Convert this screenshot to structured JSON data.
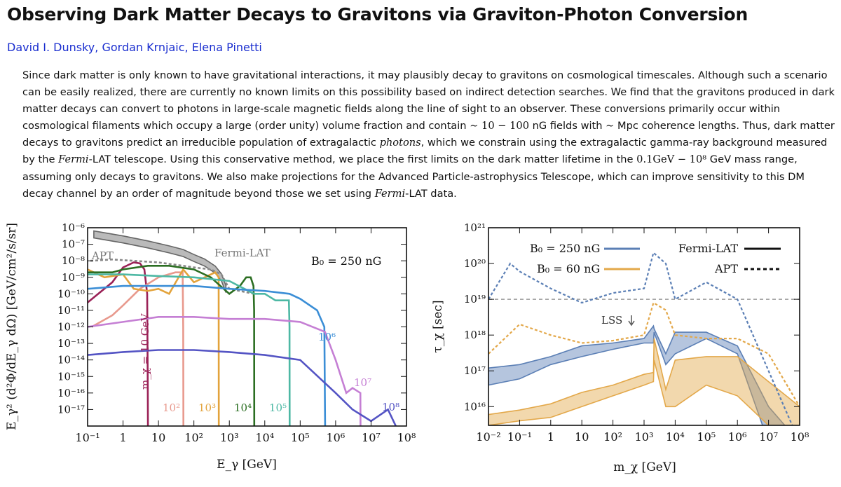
{
  "paper": {
    "title": "Observing Dark Matter Decays to Gravitons via Graviton-Photon Conversion",
    "authors": [
      "David I. Dunsky",
      "Gordan Krnjaic",
      "Elena Pinetti"
    ],
    "abstract": {
      "p1": "Since dark matter is only known to have gravitational interactions, it may plausibly decay to gravitons on cosmological timescales. Although such a scenario can be easily realized, there are currently no known limits on this possibility based on indirect detection searches. We find that the gravitons produced in dark matter decays can convert to photons in large-scale magnetic fields along the line of sight to an observer. These conversions primarily occur within cosmological filaments which occupy a large (order unity) volume fraction and contain ",
      "m1": "∼ 10 − 100",
      "p2": " nG fields with ",
      "m2": "∼",
      "p3": " Mpc coherence lengths. Thus, dark matter decays to gravitons predict an irreducible population of extragalactic ",
      "i1": "photons",
      "p4": ", which we constrain using the extragalactic gamma-ray background measured by the ",
      "i2": "Fermi",
      "p5": "-LAT telescope. Using this conservative method, we place the first limits on the dark matter lifetime in the ",
      "m3": "0.1GeV − 10⁸",
      "p6": " GeV mass range, assuming only decays to gravitons. We also make projections for the Advanced Particle-astrophysics Telescope, which can improve sensitivity to this DM decay channel by an order of magnitude beyond those we set using ",
      "i3": "Fermi",
      "p7": "-LAT data."
    }
  },
  "chart_data": [
    {
      "type": "line",
      "xlabel": "E_γ [GeV]",
      "ylabel": "E_γ² (d²Φ/dE_γ dΩ) [GeV/cm²/s/sr]",
      "xscale": "log",
      "yscale": "log",
      "xlim": [
        0.1,
        100000000
      ],
      "ylim": [
        1e-18,
        1e-06
      ],
      "x_ticks": [
        "10⁻¹",
        "1",
        "10",
        "10²",
        "10³",
        "10⁴",
        "10⁵",
        "10⁶",
        "10⁷",
        "10⁸"
      ],
      "y_ticks": [
        "10⁻⁶",
        "10⁻⁷",
        "10⁻⁸",
        "10⁻⁹",
        "10⁻¹⁰",
        "10⁻¹¹",
        "10⁻¹²",
        "10⁻¹³",
        "10⁻¹⁴",
        "10⁻¹⁵",
        "10⁻¹⁶",
        "10⁻¹⁷"
      ],
      "annotations": {
        "fermi": "Fermi-LAT",
        "apt": "APT",
        "b0": "B₀ = 250 nG"
      },
      "grid": false,
      "series": [
        {
          "name": "Fermi-LAT",
          "color": "#444444",
          "style": "band",
          "x": [
            0.15,
            1,
            5,
            20,
            50,
            100,
            200,
            400,
            600,
            800
          ],
          "y": [
            4e-07,
            2e-07,
            1e-07,
            5e-08,
            3e-08,
            1.5e-08,
            8e-09,
            3e-09,
            1e-09,
            2e-10
          ]
        },
        {
          "name": "APT",
          "color": "#888888",
          "style": "dashed",
          "x": [
            0.12,
            0.5,
            2,
            10,
            50,
            100,
            300,
            600,
            1000,
            5000
          ],
          "y": [
            1e-08,
            1.2e-08,
            1e-08,
            8e-09,
            5e-09,
            4e-09,
            3e-09,
            1.5e-09,
            2e-10,
            1e-10
          ]
        },
        {
          "name": "m_χ = 10 GeV",
          "label": "m_χ = 10 GeV",
          "color": "#9b2257",
          "x": [
            0.1,
            0.5,
            1,
            2,
            3,
            4,
            4.8,
            5,
            5.05
          ],
          "y": [
            3e-11,
            5e-10,
            4e-09,
            8e-09,
            7e-09,
            3e-09,
            1e-10,
            1e-16,
            1e-18
          ]
        },
        {
          "name": "10²",
          "label": "10²",
          "color": "#e8998d",
          "x": [
            0.13,
            0.5,
            1,
            3,
            10,
            30,
            48,
            50,
            50.5
          ],
          "y": [
            1e-12,
            5e-12,
            2e-11,
            2e-10,
            1e-09,
            2e-09,
            2e-09,
            1e-12,
            1e-18
          ]
        },
        {
          "name": "10³",
          "label": "10³",
          "color": "#e3a33c",
          "x": [
            0.1,
            0.3,
            1,
            2,
            5,
            10,
            20,
            50,
            100,
            200,
            400,
            500,
            505
          ],
          "y": [
            3e-09,
            1e-09,
            1.5e-09,
            2e-10,
            1.5e-10,
            2e-10,
            1e-10,
            3e-09,
            5e-10,
            1e-09,
            2e-09,
            1e-09,
            1e-18
          ]
        },
        {
          "name": "10⁴",
          "label": "10⁴",
          "color": "#2b6e22",
          "x": [
            0.1,
            0.5,
            1,
            5,
            20,
            100,
            300,
            1000,
            2000,
            3000,
            4000,
            4800,
            5000,
            5050
          ],
          "y": [
            2e-09,
            2e-09,
            3e-09,
            5e-09,
            5e-09,
            3e-09,
            1e-09,
            1e-10,
            3e-10,
            1e-09,
            1e-09,
            3e-10,
            1e-11,
            1e-18
          ]
        },
        {
          "name": "10⁵",
          "label": "10⁵",
          "color": "#4db8a4",
          "x": [
            0.1,
            1,
            10,
            100,
            1000,
            5000,
            10000,
            20000,
            30000,
            48000,
            50000,
            50500
          ],
          "y": [
            1.5e-09,
            1.5e-09,
            1.2e-09,
            1e-09,
            6e-10,
            1e-10,
            1e-10,
            4e-11,
            4e-11,
            4e-11,
            1e-12,
            1e-18
          ]
        },
        {
          "name": "10⁶",
          "label": "10⁶",
          "color": "#3b8ed6",
          "x": [
            0.1,
            1,
            10,
            100,
            1000,
            10000,
            50000,
            100000,
            300000,
            480000,
            500000,
            505000
          ],
          "y": [
            2e-10,
            3e-10,
            3e-10,
            3e-10,
            2e-10,
            1.5e-10,
            1e-10,
            5e-11,
            1e-11,
            1e-12,
            1e-17,
            1e-18
          ]
        },
        {
          "name": "10⁷",
          "label": "10⁷",
          "color": "#c57fd4",
          "x": [
            0.1,
            1,
            10,
            100,
            1000,
            10000,
            100000,
            500000,
            1000000,
            2000000,
            3000000,
            5000000,
            5050000
          ],
          "y": [
            1e-12,
            2e-12,
            4e-12,
            4e-12,
            3e-12,
            3e-12,
            2e-12,
            5e-13,
            1e-14,
            1e-16,
            2e-16,
            1e-16,
            1e-18
          ]
        },
        {
          "name": "10⁸",
          "label": "10⁸",
          "color": "#5454c4",
          "x": [
            0.1,
            1,
            10,
            100,
            1000,
            10000,
            100000,
            1000000,
            3000000,
            10000000,
            30000000,
            50000000
          ],
          "y": [
            2e-14,
            3e-14,
            4e-14,
            4e-14,
            3e-14,
            2e-14,
            1e-14,
            1e-16,
            1e-17,
            2e-18,
            1e-17,
            1e-18
          ]
        }
      ]
    },
    {
      "type": "area",
      "xlabel": "m_χ [GeV]",
      "ylabel": "τ_χ [sec]",
      "xscale": "log",
      "yscale": "log",
      "xlim": [
        0.01,
        100000000
      ],
      "ylim": [
        3000000000000000.0,
        1e+21
      ],
      "x_ticks": [
        "10⁻²",
        "10⁻¹",
        "1",
        "10",
        "10²",
        "10³",
        "10⁴",
        "10⁵",
        "10⁶",
        "10⁷",
        "10⁸"
      ],
      "y_ticks": [
        "10²¹",
        "10²⁰",
        "10¹⁹",
        "10¹⁸",
        "10¹⁷",
        "10¹⁶"
      ],
      "legend": {
        "b0_250": "B₀ = 250 nG",
        "b0_60": "B₀ = 60 nG",
        "fermi": "Fermi-LAT",
        "apt": "APT",
        "placement": "top"
      },
      "annotation": "LSS",
      "reference_line": 1e+19,
      "grid": false,
      "series": [
        {
          "name": "B₀ = 250 nG",
          "color": "#5b7fb5",
          "style": "band",
          "x": [
            0.01,
            0.1,
            1,
            10,
            100,
            1000,
            2000,
            2100,
            5000,
            10000,
            100000,
            1000000,
            10000000,
            100000000
          ],
          "y_low": [
            4e+16,
            6e+16,
            1.5e+17,
            2.5e+17,
            4e+17,
            6e+17,
            6e+17,
            1.2e+18,
            1.5e+17,
            3e+17,
            8e+17,
            3e+17,
            1000000000000000.0,
            100000000000000.0
          ],
          "y_high": [
            1.2e+17,
            1.5e+17,
            2.5e+17,
            5e+17,
            6e+17,
            8e+17,
            1.8e+18,
            1.5e+18,
            3e+17,
            1.2e+18,
            1.2e+18,
            5e+17,
            1e+16,
            1000000000000000.0
          ]
        },
        {
          "name": "B₀ = 60 nG",
          "color": "#e3a84a",
          "style": "band",
          "x": [
            0.01,
            0.1,
            1,
            10,
            100,
            1000,
            2000,
            2100,
            5000,
            10000,
            100000,
            1000000,
            10000000,
            100000000
          ],
          "y_low": [
            3000000000000000.0,
            4000000000000000.0,
            5000000000000000.0,
            1e+16,
            2e+16,
            4e+16,
            5e+16,
            2e+17,
            1e+16,
            1e+16,
            4e+16,
            2e+16,
            3000000000000000.0,
            1000000000000000.0
          ],
          "y_high": [
            6000000000000000.0,
            8000000000000000.0,
            1.2e+16,
            2.5e+16,
            4e+16,
            8e+16,
            9e+16,
            8e+17,
            3e+16,
            2e+17,
            2.5e+17,
            2.5e+17,
            5e+16,
            1e+16
          ]
        },
        {
          "name": "APT (B₀ = 250 nG)",
          "color": "#5b7fb5",
          "style": "dashed",
          "x": [
            0.01,
            0.05,
            0.1,
            1,
            10,
            100,
            1000,
            2000,
            5000,
            10000,
            100000,
            1000000,
            10000000,
            100000000
          ],
          "y": [
            1e+19,
            1e+20,
            6e+19,
            2e+19,
            8e+18,
            1.5e+19,
            2e+19,
            2e+20,
            1e+20,
            1e+19,
            3e+19,
            1e+19,
            1e+17,
            1000000000000000.0
          ]
        },
        {
          "name": "APT (B₀ = 60 nG)",
          "color": "#e3a84a",
          "style": "dashed",
          "x": [
            0.01,
            0.1,
            1,
            10,
            100,
            1000,
            2000,
            5000,
            10000,
            100000,
            1000000,
            10000000,
            100000000
          ],
          "y": [
            3e+17,
            2e+18,
            1e+18,
            6e+17,
            7e+17,
            1e+18,
            8e+18,
            5e+18,
            1e+18,
            8e+17,
            8e+17,
            3e+17,
            1e+16
          ]
        }
      ]
    }
  ]
}
